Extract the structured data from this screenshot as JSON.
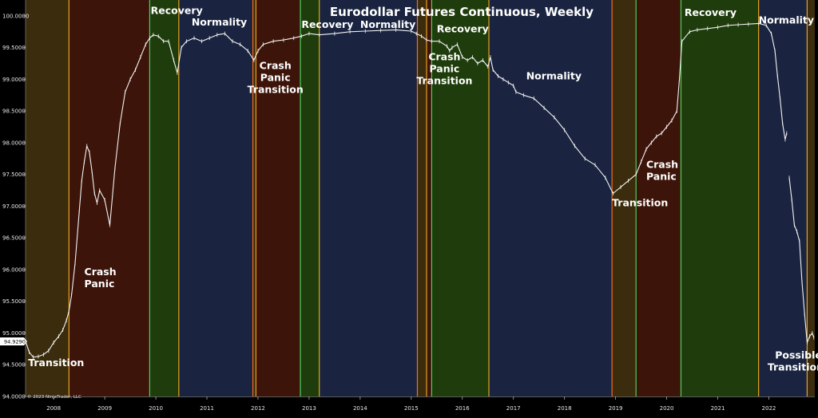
{
  "chart_data": {
    "type": "line",
    "title": "Eurodollar Futures Continuous, Weekly",
    "copyright": "© 2023 NinjaTrader, LLC",
    "last_price_label": "94.9290",
    "xlim": [
      2007.45,
      2022.9
    ],
    "ylim": [
      94.0,
      100.25
    ],
    "y_ticks": [
      {
        "value": 94.0,
        "label": "94.0000"
      },
      {
        "value": 94.5,
        "label": "94.5000"
      },
      {
        "value": 95.0,
        "label": "95.0000"
      },
      {
        "value": 95.5,
        "label": "95.5000"
      },
      {
        "value": 96.0,
        "label": "96.0000"
      },
      {
        "value": 96.5,
        "label": "96.5000"
      },
      {
        "value": 97.0,
        "label": "97.0000"
      },
      {
        "value": 97.5,
        "label": "97.5000"
      },
      {
        "value": 98.0,
        "label": "98.0000"
      },
      {
        "value": 98.5,
        "label": "98.5000"
      },
      {
        "value": 99.0,
        "label": "99.0000"
      },
      {
        "value": 99.5,
        "label": "99.5000"
      },
      {
        "value": 100.0,
        "label": "100.0000"
      }
    ],
    "x_ticks": [
      {
        "value": 2008.0,
        "label": "2008"
      },
      {
        "value": 2009.0,
        "label": "2009"
      },
      {
        "value": 2010.0,
        "label": "2010"
      },
      {
        "value": 2011.0,
        "label": "2011"
      },
      {
        "value": 2012.0,
        "label": "2012"
      },
      {
        "value": 2013.0,
        "label": "2013"
      },
      {
        "value": 2014.0,
        "label": "2014"
      },
      {
        "value": 2015.0,
        "label": "2015"
      },
      {
        "value": 2016.0,
        "label": "2016"
      },
      {
        "value": 2017.0,
        "label": "2017"
      },
      {
        "value": 2018.0,
        "label": "2018"
      },
      {
        "value": 2019.0,
        "label": "2019"
      },
      {
        "value": 2020.0,
        "label": "2020"
      },
      {
        "value": 2021.0,
        "label": "2021"
      },
      {
        "value": 2022.0,
        "label": "2022"
      }
    ],
    "phases": [
      {
        "start": 2007.45,
        "end": 2008.3,
        "fill": "#3a2c0c",
        "edge": "#e8a020"
      },
      {
        "start": 2008.3,
        "end": 2009.88,
        "fill": "#3c1409",
        "edge": "#e8a020"
      },
      {
        "start": 2009.88,
        "end": 2010.45,
        "fill": "#1f3d0c",
        "edge": "#4cd060"
      },
      {
        "start": 2010.45,
        "end": 2011.9,
        "fill": "#1a2440",
        "edge": "#e8a020"
      },
      {
        "start": 2011.9,
        "end": 2011.96,
        "fill": "#3a2c0c",
        "edge": "#ff6a1a"
      },
      {
        "start": 2011.96,
        "end": 2012.83,
        "fill": "#3c1409",
        "edge": "#e8a020"
      },
      {
        "start": 2012.83,
        "end": 2013.2,
        "fill": "#1f3d0c",
        "edge": "#4cd060"
      },
      {
        "start": 2013.2,
        "end": 2015.12,
        "fill": "#1a2440",
        "edge": "#e8a020"
      },
      {
        "start": 2015.12,
        "end": 2015.3,
        "fill": "#3a2c0c",
        "edge": "#ff6a1a"
      },
      {
        "start": 2015.3,
        "end": 2015.4,
        "fill": "#3c1409",
        "edge": "#e8a020"
      },
      {
        "start": 2015.4,
        "end": 2016.52,
        "fill": "#1f3d0c",
        "edge": "#4cd060"
      },
      {
        "start": 2016.52,
        "end": 2018.93,
        "fill": "#1a2440",
        "edge": "#e8a020"
      },
      {
        "start": 2018.93,
        "end": 2019.4,
        "fill": "#3a2c0c",
        "edge": "#ff6a1a"
      },
      {
        "start": 2019.4,
        "end": 2020.28,
        "fill": "#3c1409",
        "edge": "#4cd060"
      },
      {
        "start": 2020.28,
        "end": 2021.8,
        "fill": "#1f3d0c",
        "edge": "#4cd060"
      },
      {
        "start": 2021.8,
        "end": 2022.75,
        "fill": "#1a2440",
        "edge": "#e8a020"
      },
      {
        "start": 2022.75,
        "end": 2022.9,
        "fill": "#3a2c0c",
        "edge": "#e8a020"
      }
    ],
    "annotations": [
      {
        "lines": [
          "Transition"
        ],
        "x": 2007.5,
        "y": 94.48,
        "anchor": "start"
      },
      {
        "lines": [
          "Crash",
          "Panic"
        ],
        "x": 2008.6,
        "y": 95.91,
        "anchor": "start"
      },
      {
        "lines": [
          "Recovery"
        ],
        "x": 2009.9,
        "y": 100.03,
        "anchor": "start"
      },
      {
        "lines": [
          "Normality"
        ],
        "x": 2010.7,
        "y": 99.85,
        "anchor": "start"
      },
      {
        "lines": [
          "Crash",
          "Panic",
          "Transition"
        ],
        "x": 2012.34,
        "y": 99.16,
        "anchor": "middle"
      },
      {
        "lines": [
          "Recovery"
        ],
        "x": 2012.85,
        "y": 99.81,
        "anchor": "start"
      },
      {
        "lines": [
          "Normality"
        ],
        "x": 2014.0,
        "y": 99.81,
        "anchor": "start"
      },
      {
        "lines": [
          "Recovery"
        ],
        "x": 2015.5,
        "y": 99.74,
        "anchor": "start"
      },
      {
        "lines": [
          "Crash",
          "Panic",
          "Transition"
        ],
        "x": 2015.65,
        "y": 99.3,
        "anchor": "middle"
      },
      {
        "lines": [
          "Normality"
        ],
        "x": 2017.25,
        "y": 99.0,
        "anchor": "start"
      },
      {
        "lines": [
          "Transition"
        ],
        "x": 2018.93,
        "y": 97.0,
        "anchor": "start"
      },
      {
        "lines": [
          "Crash",
          "Panic"
        ],
        "x": 2019.6,
        "y": 97.6,
        "anchor": "start"
      },
      {
        "lines": [
          "Recovery"
        ],
        "x": 2020.35,
        "y": 100.0,
        "anchor": "start"
      },
      {
        "lines": [
          "Normality"
        ],
        "x": 2021.8,
        "y": 99.88,
        "anchor": "start"
      },
      {
        "lines": [
          "Possible",
          "Transition?"
        ],
        "x": 2022.58,
        "y": 94.6,
        "anchor": "middle"
      }
    ],
    "series": [
      {
        "color": "#f2f2f2",
        "x": [
          2007.46,
          2007.52,
          2007.6,
          2007.7,
          2007.8,
          2007.9,
          2008.0,
          2008.1,
          2008.18,
          2008.25,
          2008.3,
          2008.35,
          2008.42,
          2008.5,
          2008.55,
          2008.6,
          2008.65,
          2008.7,
          2008.75,
          2008.8,
          2008.85,
          2008.9,
          2009.0,
          2009.1,
          2009.2,
          2009.3,
          2009.4,
          2009.5,
          2009.6,
          2009.7,
          2009.8,
          2009.88,
          2009.95,
          2010.05,
          2010.15,
          2010.25,
          2010.35,
          2010.42,
          2010.5,
          2010.6,
          2010.75,
          2010.9,
          2011.05,
          2011.2,
          2011.35,
          2011.5,
          2011.65,
          2011.8,
          2011.92,
          2012.0,
          2012.1,
          2012.3,
          2012.5,
          2012.7,
          2012.85,
          2013.0,
          2013.2,
          2013.5,
          2013.8,
          2014.1,
          2014.4,
          2014.7,
          2015.0,
          2015.1,
          2015.2,
          2015.3,
          2015.4,
          2015.55,
          2015.7,
          2015.75,
          2015.8,
          2015.9,
          2016.0,
          2016.1,
          2016.2,
          2016.3,
          2016.4,
          2016.5,
          2016.55,
          2016.6,
          2016.7,
          2016.8,
          2016.9,
          2017.0,
          2017.05,
          2017.2,
          2017.4,
          2017.6,
          2017.8,
          2018.0,
          2018.2,
          2018.4,
          2018.6,
          2018.8,
          2018.95,
          2019.1,
          2019.25,
          2019.4,
          2019.5,
          2019.6,
          2019.7,
          2019.8,
          2019.9,
          2020.0,
          2020.1,
          2020.2,
          2020.25,
          2020.3,
          2020.45,
          2020.6,
          2020.8,
          2021.0,
          2021.2,
          2021.4,
          2021.6,
          2021.8,
          2021.95,
          2022.05,
          2022.12,
          2022.17,
          2022.22,
          2022.27,
          2022.32,
          2022.35
        ],
        "values": [
          94.85,
          94.7,
          94.62,
          94.63,
          94.66,
          94.72,
          94.85,
          94.95,
          95.05,
          95.2,
          95.35,
          95.6,
          96.1,
          96.9,
          97.4,
          97.7,
          97.95,
          97.85,
          97.55,
          97.2,
          97.05,
          97.25,
          97.1,
          96.7,
          97.6,
          98.3,
          98.8,
          99.0,
          99.15,
          99.35,
          99.55,
          99.65,
          99.7,
          99.68,
          99.6,
          99.6,
          99.3,
          99.1,
          99.5,
          99.6,
          99.65,
          99.6,
          99.65,
          99.7,
          99.72,
          99.6,
          99.55,
          99.45,
          99.3,
          99.45,
          99.55,
          99.6,
          99.62,
          99.65,
          99.68,
          99.72,
          99.7,
          99.72,
          99.75,
          99.76,
          99.77,
          99.78,
          99.76,
          99.72,
          99.68,
          99.62,
          99.6,
          99.6,
          99.52,
          99.45,
          99.5,
          99.55,
          99.35,
          99.3,
          99.35,
          99.25,
          99.3,
          99.2,
          99.35,
          99.15,
          99.05,
          99.0,
          98.95,
          98.9,
          98.8,
          98.75,
          98.7,
          98.55,
          98.4,
          98.2,
          97.95,
          97.75,
          97.65,
          97.45,
          97.2,
          97.3,
          97.4,
          97.5,
          97.7,
          97.9,
          98.0,
          98.1,
          98.15,
          98.25,
          98.35,
          98.5,
          99.0,
          99.6,
          99.75,
          99.78,
          99.8,
          99.82,
          99.85,
          99.86,
          99.87,
          99.88,
          99.85,
          99.72,
          99.45,
          99.05,
          98.7,
          98.3,
          98.05,
          98.15
        ]
      },
      {
        "color": "#f2f2f2",
        "x": [
          2022.4,
          2022.45,
          2022.5,
          2022.55,
          2022.6,
          2022.65,
          2022.7,
          2022.75,
          2022.8,
          2022.85,
          2022.88
        ],
        "values": [
          97.45,
          97.1,
          96.7,
          96.6,
          96.45,
          95.8,
          95.3,
          94.85,
          94.95,
          95.0,
          94.93
        ]
      }
    ]
  }
}
